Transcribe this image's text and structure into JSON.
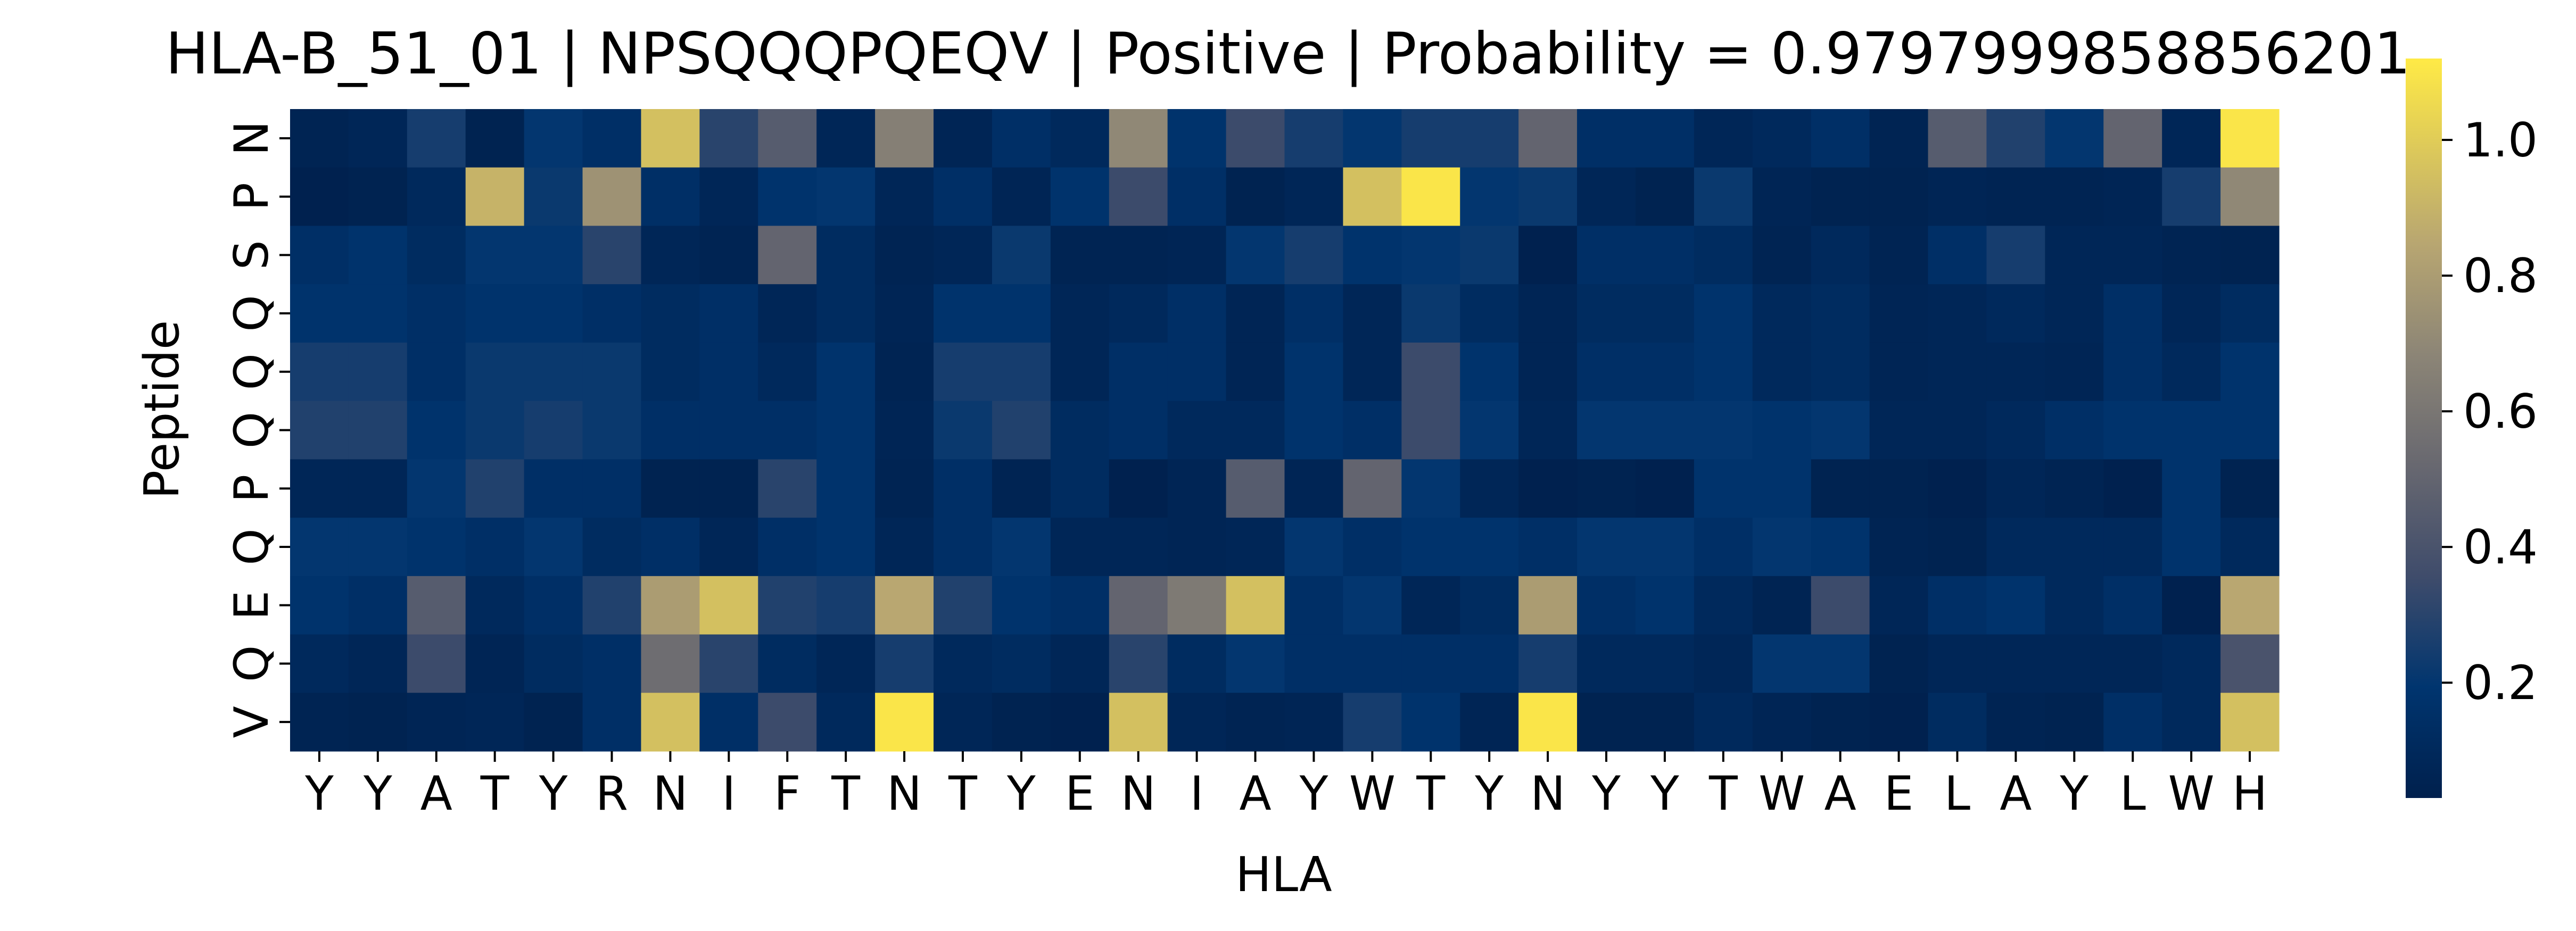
{
  "chart_data": {
    "type": "heatmap",
    "title": "HLA-B_51_01 | NPSQQQPQEQV | Positive | Probability = 0.9797999858856201",
    "xlabel": "HLA",
    "ylabel": "Peptide",
    "x_ticks": [
      "Y",
      "Y",
      "A",
      "T",
      "Y",
      "R",
      "N",
      "I",
      "F",
      "T",
      "N",
      "T",
      "Y",
      "E",
      "N",
      "I",
      "A",
      "Y",
      "W",
      "T",
      "Y",
      "N",
      "Y",
      "Y",
      "T",
      "W",
      "A",
      "E",
      "L",
      "A",
      "Y",
      "L",
      "W",
      "H"
    ],
    "y_ticks": [
      "N",
      "P",
      "S",
      "Q",
      "Q",
      "Q",
      "P",
      "Q",
      "E",
      "Q",
      "V"
    ],
    "colormap": "cividis",
    "colorbar": {
      "min": 0.03,
      "max": 1.12,
      "ticks": [
        0.2,
        0.4,
        0.6,
        0.8,
        1.0
      ],
      "tick_labels": [
        "0.2",
        "0.4",
        "0.6",
        "0.8",
        "1.0"
      ]
    },
    "values": [
      [
        0.06,
        0.08,
        0.25,
        0.05,
        0.2,
        0.15,
        0.95,
        0.3,
        0.45,
        0.08,
        0.65,
        0.07,
        0.15,
        0.1,
        0.7,
        0.18,
        0.35,
        0.25,
        0.2,
        0.25,
        0.25,
        0.5,
        0.15,
        0.15,
        0.08,
        0.1,
        0.15,
        0.06,
        0.45,
        0.28,
        0.2,
        0.5,
        0.08,
        1.1
      ],
      [
        0.04,
        0.05,
        0.1,
        0.9,
        0.22,
        0.75,
        0.15,
        0.08,
        0.18,
        0.2,
        0.08,
        0.15,
        0.07,
        0.18,
        0.35,
        0.15,
        0.05,
        0.08,
        0.95,
        1.1,
        0.2,
        0.22,
        0.08,
        0.05,
        0.22,
        0.07,
        0.05,
        0.05,
        0.07,
        0.06,
        0.06,
        0.07,
        0.25,
        0.7
      ],
      [
        0.15,
        0.18,
        0.12,
        0.2,
        0.2,
        0.3,
        0.08,
        0.06,
        0.5,
        0.12,
        0.06,
        0.08,
        0.22,
        0.06,
        0.06,
        0.07,
        0.2,
        0.25,
        0.18,
        0.2,
        0.22,
        0.04,
        0.15,
        0.15,
        0.12,
        0.06,
        0.1,
        0.06,
        0.15,
        0.25,
        0.08,
        0.08,
        0.06,
        0.05
      ],
      [
        0.18,
        0.18,
        0.15,
        0.18,
        0.18,
        0.15,
        0.12,
        0.15,
        0.08,
        0.12,
        0.07,
        0.18,
        0.18,
        0.08,
        0.1,
        0.15,
        0.07,
        0.15,
        0.08,
        0.22,
        0.12,
        0.07,
        0.12,
        0.12,
        0.18,
        0.1,
        0.12,
        0.07,
        0.08,
        0.1,
        0.08,
        0.15,
        0.08,
        0.12
      ],
      [
        0.25,
        0.25,
        0.15,
        0.22,
        0.22,
        0.22,
        0.12,
        0.15,
        0.1,
        0.18,
        0.06,
        0.25,
        0.25,
        0.08,
        0.15,
        0.15,
        0.07,
        0.18,
        0.08,
        0.35,
        0.18,
        0.07,
        0.15,
        0.15,
        0.18,
        0.1,
        0.12,
        0.07,
        0.08,
        0.08,
        0.07,
        0.15,
        0.1,
        0.18
      ],
      [
        0.28,
        0.28,
        0.18,
        0.22,
        0.25,
        0.22,
        0.15,
        0.15,
        0.15,
        0.18,
        0.07,
        0.22,
        0.28,
        0.12,
        0.15,
        0.1,
        0.1,
        0.18,
        0.15,
        0.35,
        0.2,
        0.08,
        0.2,
        0.2,
        0.2,
        0.18,
        0.2,
        0.08,
        0.08,
        0.1,
        0.15,
        0.18,
        0.18,
        0.18
      ],
      [
        0.08,
        0.08,
        0.2,
        0.28,
        0.15,
        0.15,
        0.05,
        0.05,
        0.3,
        0.18,
        0.06,
        0.15,
        0.06,
        0.12,
        0.04,
        0.07,
        0.45,
        0.07,
        0.5,
        0.2,
        0.08,
        0.04,
        0.05,
        0.04,
        0.18,
        0.18,
        0.05,
        0.05,
        0.04,
        0.08,
        0.06,
        0.04,
        0.18,
        0.05
      ],
      [
        0.2,
        0.2,
        0.18,
        0.15,
        0.2,
        0.12,
        0.15,
        0.08,
        0.15,
        0.18,
        0.08,
        0.15,
        0.2,
        0.08,
        0.08,
        0.07,
        0.08,
        0.2,
        0.15,
        0.18,
        0.18,
        0.15,
        0.2,
        0.2,
        0.15,
        0.2,
        0.18,
        0.06,
        0.05,
        0.1,
        0.1,
        0.1,
        0.18,
        0.1
      ],
      [
        0.18,
        0.15,
        0.45,
        0.1,
        0.15,
        0.28,
        0.8,
        0.95,
        0.28,
        0.25,
        0.85,
        0.28,
        0.18,
        0.15,
        0.5,
        0.62,
        0.95,
        0.15,
        0.2,
        0.08,
        0.12,
        0.8,
        0.15,
        0.18,
        0.1,
        0.06,
        0.35,
        0.08,
        0.15,
        0.18,
        0.1,
        0.15,
        0.04,
        0.85
      ],
      [
        0.1,
        0.08,
        0.35,
        0.07,
        0.12,
        0.15,
        0.55,
        0.3,
        0.12,
        0.08,
        0.25,
        0.1,
        0.12,
        0.08,
        0.3,
        0.12,
        0.2,
        0.15,
        0.15,
        0.15,
        0.15,
        0.25,
        0.1,
        0.1,
        0.08,
        0.2,
        0.2,
        0.05,
        0.08,
        0.08,
        0.08,
        0.08,
        0.1,
        0.4
      ],
      [
        0.06,
        0.05,
        0.07,
        0.08,
        0.05,
        0.15,
        0.95,
        0.15,
        0.35,
        0.1,
        1.1,
        0.08,
        0.05,
        0.04,
        0.95,
        0.08,
        0.06,
        0.07,
        0.25,
        0.18,
        0.07,
        1.1,
        0.05,
        0.05,
        0.1,
        0.07,
        0.05,
        0.04,
        0.12,
        0.06,
        0.05,
        0.15,
        0.1,
        0.95
      ]
    ]
  }
}
